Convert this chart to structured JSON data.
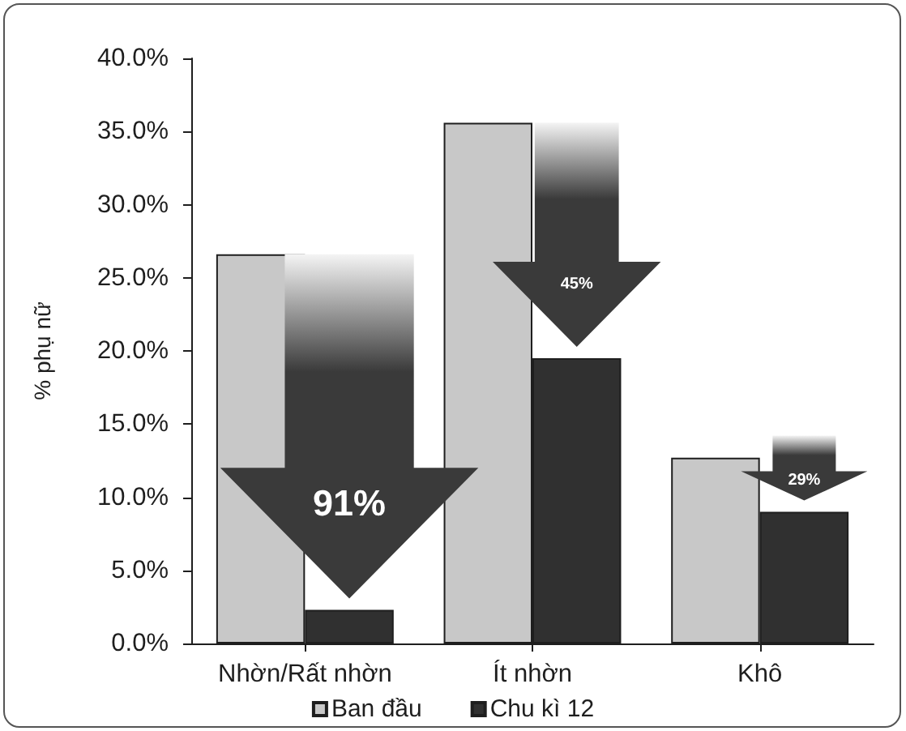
{
  "chart_data": {
    "type": "bar",
    "ylabel": "% phụ nữ",
    "categories": [
      "Nhờn/Rất nhờn",
      "Ít nhờn",
      "Khô"
    ],
    "series": [
      {
        "name": "Ban đầu",
        "color": "#c8c8c8",
        "values": [
          26.6,
          35.6,
          12.7
        ]
      },
      {
        "name": "Chu kì 12",
        "color": "#303030",
        "values": [
          2.3,
          19.5,
          9.0
        ]
      }
    ],
    "ylim": [
      0,
      40
    ],
    "yticks": [
      {
        "value": 0,
        "label": "0.0%"
      },
      {
        "value": 5,
        "label": "5.0%"
      },
      {
        "value": 10,
        "label": "10.0%"
      },
      {
        "value": 15,
        "label": "15.0%"
      },
      {
        "value": 20,
        "label": "20.0%"
      },
      {
        "value": 25,
        "label": "25.0%"
      },
      {
        "value": 30,
        "label": "30.0%"
      },
      {
        "value": 35,
        "label": "35.0%"
      },
      {
        "value": 40,
        "label": "40.0%"
      }
    ],
    "grid": false,
    "legend": "bottom",
    "annotations": [
      "91%",
      "45%",
      "29%"
    ]
  }
}
